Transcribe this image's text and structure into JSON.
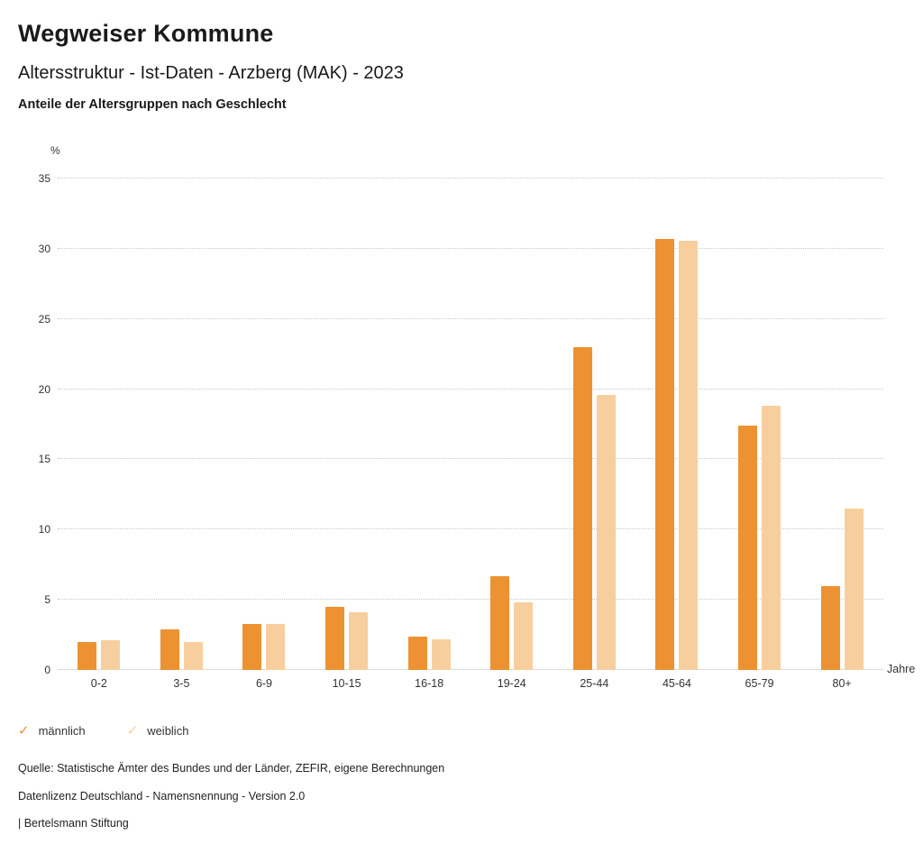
{
  "header": {
    "title": "Wegweiser Kommune",
    "subtitle": "Altersstruktur - Ist-Daten - Arzberg (MAK) - 2023",
    "chart_heading": "Anteile der Altersgruppen nach Geschlecht"
  },
  "chart_data": {
    "type": "bar",
    "title": "Anteile der Altersgruppen nach Geschlecht",
    "categories": [
      "0-2",
      "3-5",
      "6-9",
      "10-15",
      "16-18",
      "19-24",
      "25-44",
      "45-64",
      "65-79",
      "80+"
    ],
    "series": [
      {
        "name": "männlich",
        "color": "#EC9232",
        "values": [
          2.0,
          2.9,
          3.3,
          4.5,
          2.4,
          6.7,
          23.0,
          30.7,
          17.4,
          6.0
        ]
      },
      {
        "name": "weiblich",
        "color": "#F7CF9E",
        "values": [
          2.1,
          2.0,
          3.3,
          4.1,
          2.2,
          4.8,
          19.6,
          30.6,
          18.8,
          11.5
        ]
      }
    ],
    "unit_label": "%",
    "xlabel": "Jahre",
    "ylim": [
      0,
      35
    ],
    "ytick_step": 5,
    "grid": true,
    "legend_position": "bottom"
  },
  "legend": {
    "items": [
      {
        "label": "männlich",
        "color": "#EC9232",
        "icon": "check"
      },
      {
        "label": "weiblich",
        "color": "#F7CF9E",
        "icon": "check"
      }
    ]
  },
  "footer": {
    "source": "Quelle: Statistische Ämter des Bundes und der Länder, ZEFIR, eigene Berechnungen",
    "license": "Datenlizenz Deutschland - Namensnennung - Version 2.0",
    "attribution": "| Bertelsmann Stiftung"
  }
}
